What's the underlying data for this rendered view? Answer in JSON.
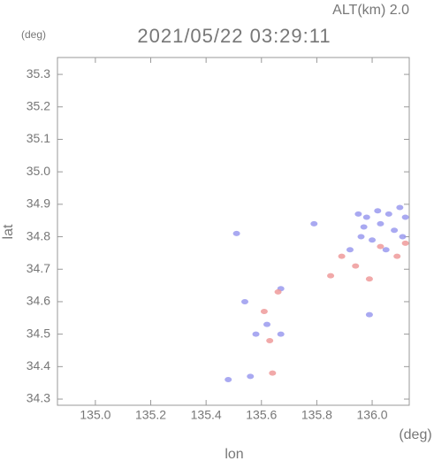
{
  "chart_data": {
    "type": "scatter",
    "title": "2021/05/22 03:29:11",
    "subtitle": "ALT(km)  2.0",
    "x_label": "lon",
    "y_label": "lat",
    "x_unit": "(deg)",
    "y_unit": "(deg)",
    "xlim": [
      134.863,
      136.134
    ],
    "ylim": [
      34.281,
      35.352
    ],
    "xticks": [
      {
        "value": 135,
        "label": "135.0"
      },
      135.2,
      135.4,
      135.6,
      135.8,
      {
        "value": 136,
        "label": "136.0"
      }
    ],
    "yticks": [
      34.3,
      34.4,
      34.5,
      34.6,
      34.7,
      34.8,
      34.9,
      {
        "value": 35,
        "label": "35.0"
      },
      35.1,
      35.2,
      35.3
    ],
    "series": [
      {
        "color": "#9a9aee",
        "x": [
          135.95,
          135.98,
          136.02,
          136.06,
          136.1,
          136.12,
          135.97,
          136.03,
          136.08,
          136.11,
          135.96,
          136.0,
          136.05,
          135.92,
          135.67,
          135.58,
          135.62,
          135.67,
          135.54,
          135.51,
          135.79,
          135.48,
          135.56,
          135.99
        ],
        "values": [
          34.87,
          34.86,
          34.88,
          34.87,
          34.89,
          34.86,
          34.83,
          34.84,
          34.82,
          34.8,
          34.8,
          34.79,
          34.76,
          34.76,
          34.64,
          34.5,
          34.53,
          34.5,
          34.6,
          34.81,
          34.84,
          34.36,
          34.37,
          34.56
        ]
      },
      {
        "color": "#ee9a9a",
        "x": [
          136.12,
          136.03,
          135.99,
          135.89,
          135.85,
          135.63,
          135.61,
          135.66,
          136.09,
          135.94,
          135.64
        ],
        "values": [
          34.78,
          34.77,
          34.67,
          34.74,
          34.68,
          34.48,
          34.57,
          34.63,
          34.74,
          34.71,
          34.38
        ]
      }
    ]
  }
}
